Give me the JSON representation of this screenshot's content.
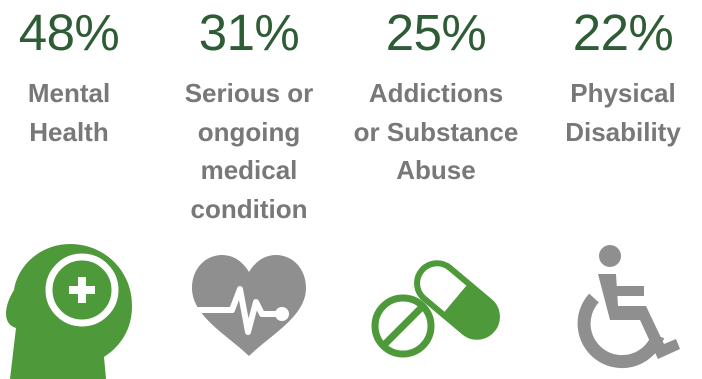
{
  "colors": {
    "percent_text": "#2e5c35",
    "label_text": "#787878",
    "accent_green": "#4e9a3a",
    "neutral_gray": "#8f8f8f"
  },
  "stats": [
    {
      "percent": "48%",
      "label_lines": [
        "Mental",
        "Health"
      ],
      "icon": "head-with-plus-icon"
    },
    {
      "percent": "31%",
      "label_lines": [
        "Serious or",
        "ongoing",
        "medical",
        "condition"
      ],
      "icon": "heartbeat-heart-icon"
    },
    {
      "percent": "25%",
      "label_lines": [
        "Addictions",
        "or Substance",
        "Abuse"
      ],
      "icon": "pill-capsule-icon"
    },
    {
      "percent": "22%",
      "label_lines": [
        "Physical",
        "Disability"
      ],
      "icon": "wheelchair-icon"
    }
  ]
}
